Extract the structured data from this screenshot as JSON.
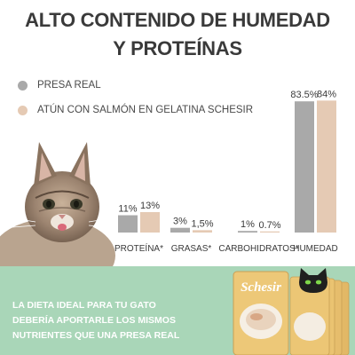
{
  "title": {
    "line1": "ALTO CONTENIDO DE HUMEDAD",
    "line2": "Y PROTEÍNAS"
  },
  "legend": [
    {
      "label": "PRESA REAL",
      "color": "#a9a9a9"
    },
    {
      "label": "ATÚN CON SALMÓN EN GELATINA SCHESIR",
      "color": "#e5cab4"
    }
  ],
  "chart_data": {
    "type": "bar",
    "categories": [
      "PROTEÍNA*",
      "GRASAS*",
      "CARBOHIDRATOS*",
      "HUMEDAD"
    ],
    "series": [
      {
        "name": "PRESA REAL",
        "values": [
          11,
          3,
          1,
          83.5
        ],
        "labels": [
          "11%",
          "3%",
          "1%",
          "83.5%"
        ],
        "color": "#a9a9a9"
      },
      {
        "name": "ATÚN CON SALMÓN EN GELATINA SCHESIR",
        "values": [
          13,
          1.5,
          0.7,
          84
        ],
        "labels": [
          "13%",
          "1,5%",
          "0.7%",
          "84%"
        ],
        "color": "#e5cab4"
      }
    ],
    "ylim": [
      0,
      100
    ],
    "grid": false,
    "legend": "top-left"
  },
  "banner": {
    "lines": [
      "LA DIETA IDEAL PARA TU GATO",
      "DEBERÍA APORTARLE LOS MISMOS",
      "NUTRIENTES QUE UNA PRESA REAL"
    ],
    "color": "#a9d6b8"
  },
  "product": {
    "brand": "Schesir",
    "pack_color": "#e8c27a"
  }
}
